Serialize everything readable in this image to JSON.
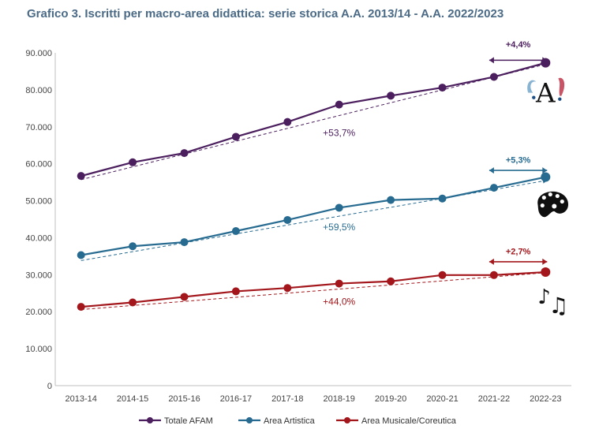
{
  "chart_data": {
    "type": "line",
    "title": "Grafico 3. Iscritti per macro-area didattica: serie storica A.A. 2013/14 - A.A. 2022/2023",
    "xlabel": "",
    "ylabel": "",
    "ylim": [
      0,
      90000
    ],
    "yticks": [
      0,
      10000,
      20000,
      30000,
      40000,
      50000,
      60000,
      70000,
      80000,
      90000
    ],
    "ytick_labels": [
      "0",
      "10.000",
      "20.000",
      "30.000",
      "40.000",
      "50.000",
      "60.000",
      "70.000",
      "80.000",
      "90.000"
    ],
    "categories": [
      "2013-14",
      "2014-15",
      "2015-16",
      "2016-17",
      "2017-18",
      "2018-19",
      "2019-20",
      "2020-21",
      "2021-22",
      "2022-23"
    ],
    "grid": false,
    "legend_position": "bottom",
    "series": [
      {
        "name": "Totale AFAM",
        "color": "#4b1e5e",
        "values": [
          56700,
          60400,
          62900,
          67300,
          71300,
          76000,
          78400,
          80600,
          83500,
          87300
        ],
        "icon": "music-letter-a-icon",
        "trend_label": "+53,7%",
        "trend_label_category": 5,
        "trend_label_value": 67500,
        "recent_label": "+4,4%",
        "recent_label_value": 91500,
        "recent_arrow_value": 88000
      },
      {
        "name": "Area Artistica",
        "color": "#276b91",
        "values": [
          35300,
          37700,
          38800,
          41800,
          44800,
          48100,
          50200,
          50600,
          53500,
          56400
        ],
        "icon": "palette-icon",
        "trend_label": "+59,5%",
        "trend_label_category": 5,
        "trend_label_value": 42000,
        "recent_label": "+5,3%",
        "recent_label_value": 60200,
        "recent_arrow_value": 58200
      },
      {
        "name": "Area Musicale/Coreutica",
        "color": "#a3171c",
        "values": [
          21300,
          22500,
          24000,
          25500,
          26400,
          27600,
          28200,
          29900,
          29900,
          30700
        ],
        "icon": "music-notes-icon",
        "trend_label": "+44,0%",
        "trend_label_category": 5,
        "trend_label_value": 21900,
        "recent_label": "+2,7%",
        "recent_label_value": 35500,
        "recent_arrow_value": 33500
      }
    ]
  }
}
